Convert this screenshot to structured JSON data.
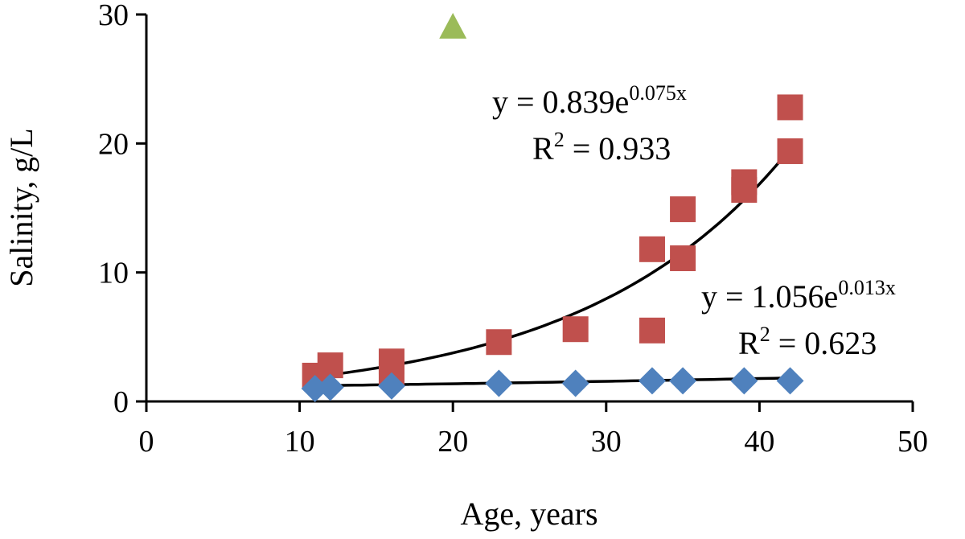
{
  "chart_data": {
    "type": "scatter",
    "xlabel": "Age, years",
    "ylabel": "Salinity, g/L",
    "xlim": [
      0,
      50
    ],
    "ylim": [
      0,
      30
    ],
    "xticks": [
      "0",
      "10",
      "20",
      "30",
      "40",
      "50"
    ],
    "yticks": [
      "0",
      "10",
      "20",
      "30"
    ],
    "grid": false,
    "legend": "none",
    "series": [
      {
        "marker": "square",
        "color": "#c0504d",
        "points": [
          [
            11,
            2.0
          ],
          [
            12,
            2.8
          ],
          [
            16,
            2.2
          ],
          [
            16,
            3.1
          ],
          [
            23,
            4.6
          ],
          [
            28,
            5.6
          ],
          [
            33,
            5.5
          ],
          [
            33,
            11.8
          ],
          [
            35,
            11.1
          ],
          [
            35,
            14.9
          ],
          [
            39,
            16.4
          ],
          [
            39,
            17.0
          ],
          [
            42,
            19.4
          ],
          [
            42,
            22.8
          ]
        ],
        "trendline": {
          "type": "exponential",
          "a": 0.839,
          "b": 0.075,
          "x_range": [
            11,
            42
          ]
        },
        "equation": {
          "prefix": "y = 0.839e",
          "exponent": "0.075x",
          "r2_prefix": "R",
          "r2_power": "2",
          "r2_suffix": " = 0.933"
        }
      },
      {
        "marker": "diamond",
        "color": "#4f81bd",
        "points": [
          [
            11,
            1.0
          ],
          [
            12,
            1.1
          ],
          [
            16,
            1.2
          ],
          [
            23,
            1.4
          ],
          [
            28,
            1.4
          ],
          [
            33,
            1.6
          ],
          [
            35,
            1.6
          ],
          [
            39,
            1.6
          ],
          [
            42,
            1.6
          ]
        ],
        "trendline": {
          "type": "exponential",
          "a": 1.056,
          "b": 0.013,
          "x_range": [
            11,
            42
          ]
        },
        "equation": {
          "prefix": "y = 1.056e",
          "exponent": "0.013x",
          "r2_prefix": "R",
          "r2_power": "2",
          "r2_suffix": " = 0.623"
        }
      },
      {
        "marker": "triangle",
        "color": "#9bbb59",
        "points": [
          [
            20,
            29.0
          ]
        ]
      }
    ]
  }
}
